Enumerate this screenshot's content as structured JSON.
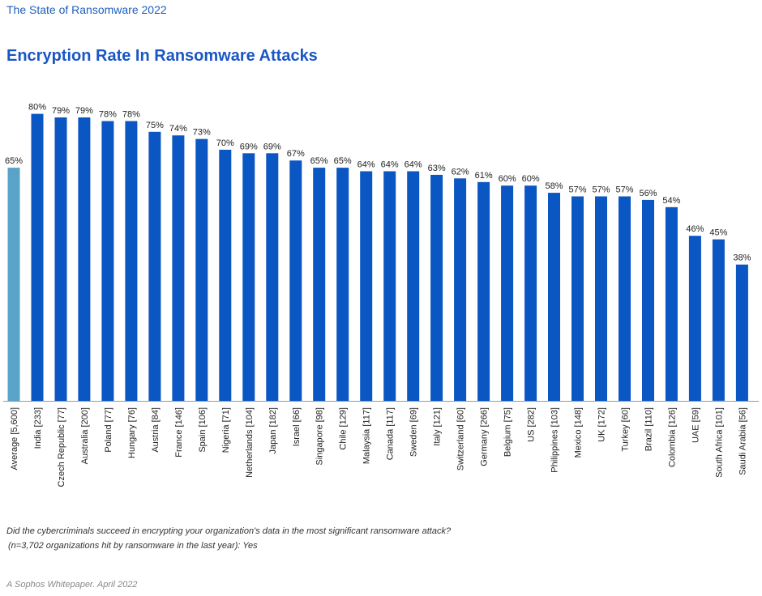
{
  "header": {
    "report_title": "The State of Ransomware 2022"
  },
  "chart_data": {
    "type": "bar",
    "title": "Encryption Rate In Ransomware Attacks",
    "xlabel": "",
    "ylabel": "",
    "ylim": [
      0,
      100
    ],
    "value_suffix": "%",
    "grid": false,
    "legend": "none",
    "categories": [
      "Average [5,600]",
      "India [233]",
      "Czech Republic [77]",
      "Australia [200]",
      "Poland [77]",
      "Hungary [76]",
      "Austria [84]",
      "France [146]",
      "Spain [106]",
      "Nigeria [71]",
      "Netherlands [104]",
      "Japan [182]",
      "Israel [66]",
      "Singapore [98]",
      "Chile [129]",
      "Malaysia [117]",
      "Canada [117]",
      "Sweden [69]",
      "Italy [121]",
      "Switzerland [60]",
      "Germany [266]",
      "Belgium [75]",
      "US [282]",
      "Philippines [103]",
      "Mexico [148]",
      "UK [172]",
      "Turkey [60]",
      "Brazil [110]",
      "Colombia [126]",
      "UAE [59]",
      "South Africa [101]",
      "Saudi Arabia [56]"
    ],
    "values": [
      65,
      80,
      79,
      79,
      78,
      78,
      75,
      74,
      73,
      70,
      69,
      69,
      67,
      65,
      65,
      64,
      64,
      64,
      63,
      62,
      61,
      60,
      60,
      58,
      57,
      57,
      57,
      56,
      54,
      46,
      45,
      38
    ],
    "colors": {
      "average": "#5aa3c8",
      "country": "#0a56c2",
      "baseline": "#999999",
      "label": "#222222"
    }
  },
  "notes": {
    "question": "Did the cybercriminals succeed in encrypting your organization's data in the most significant ransomware attack?",
    "sample": "(n=3,702 organizations hit by ransomware in the last year): Yes"
  },
  "footer": {
    "source": "A Sophos Whitepaper. April 2022"
  }
}
